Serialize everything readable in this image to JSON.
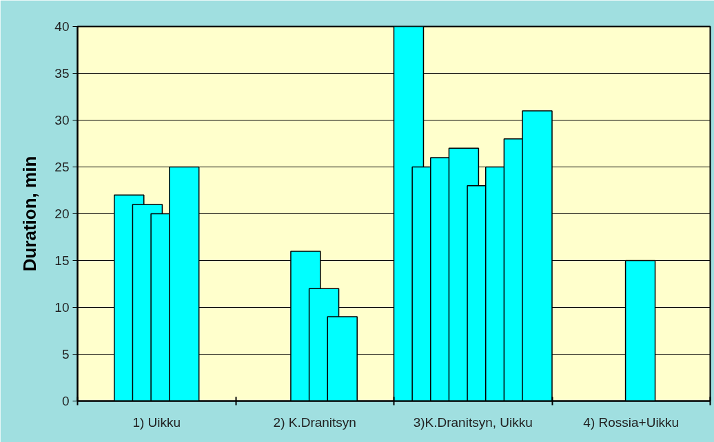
{
  "chart_data": {
    "type": "bar",
    "ylabel": "Duration, min",
    "categories": [
      "1) Uikku",
      "2) K.Dranitsyn",
      "3)K.Dranitsyn, Uikku",
      "4) Rossia+Uikku"
    ],
    "series": [
      {
        "color": "#00ffff",
        "values": [
          null,
          null,
          40,
          null
        ]
      },
      {
        "color": "#00ffff",
        "values": [
          null,
          null,
          25,
          null
        ]
      },
      {
        "color": "#00ffff",
        "values": [
          22,
          null,
          26,
          null
        ]
      },
      {
        "color": "#00ffff",
        "values": [
          21,
          16,
          27,
          null
        ]
      },
      {
        "color": "#00ffff",
        "values": [
          20,
          12,
          23,
          15
        ]
      },
      {
        "color": "#00ffff",
        "values": [
          25,
          9,
          25,
          null
        ]
      },
      {
        "color": "#00ffff",
        "values": [
          null,
          null,
          28,
          null
        ]
      },
      {
        "color": "#00ffff",
        "values": [
          null,
          null,
          31,
          null
        ]
      }
    ],
    "ylim": [
      0,
      40
    ],
    "yticks": [
      0,
      5,
      10,
      15,
      20,
      25,
      30,
      35,
      40
    ],
    "grid": "y"
  }
}
